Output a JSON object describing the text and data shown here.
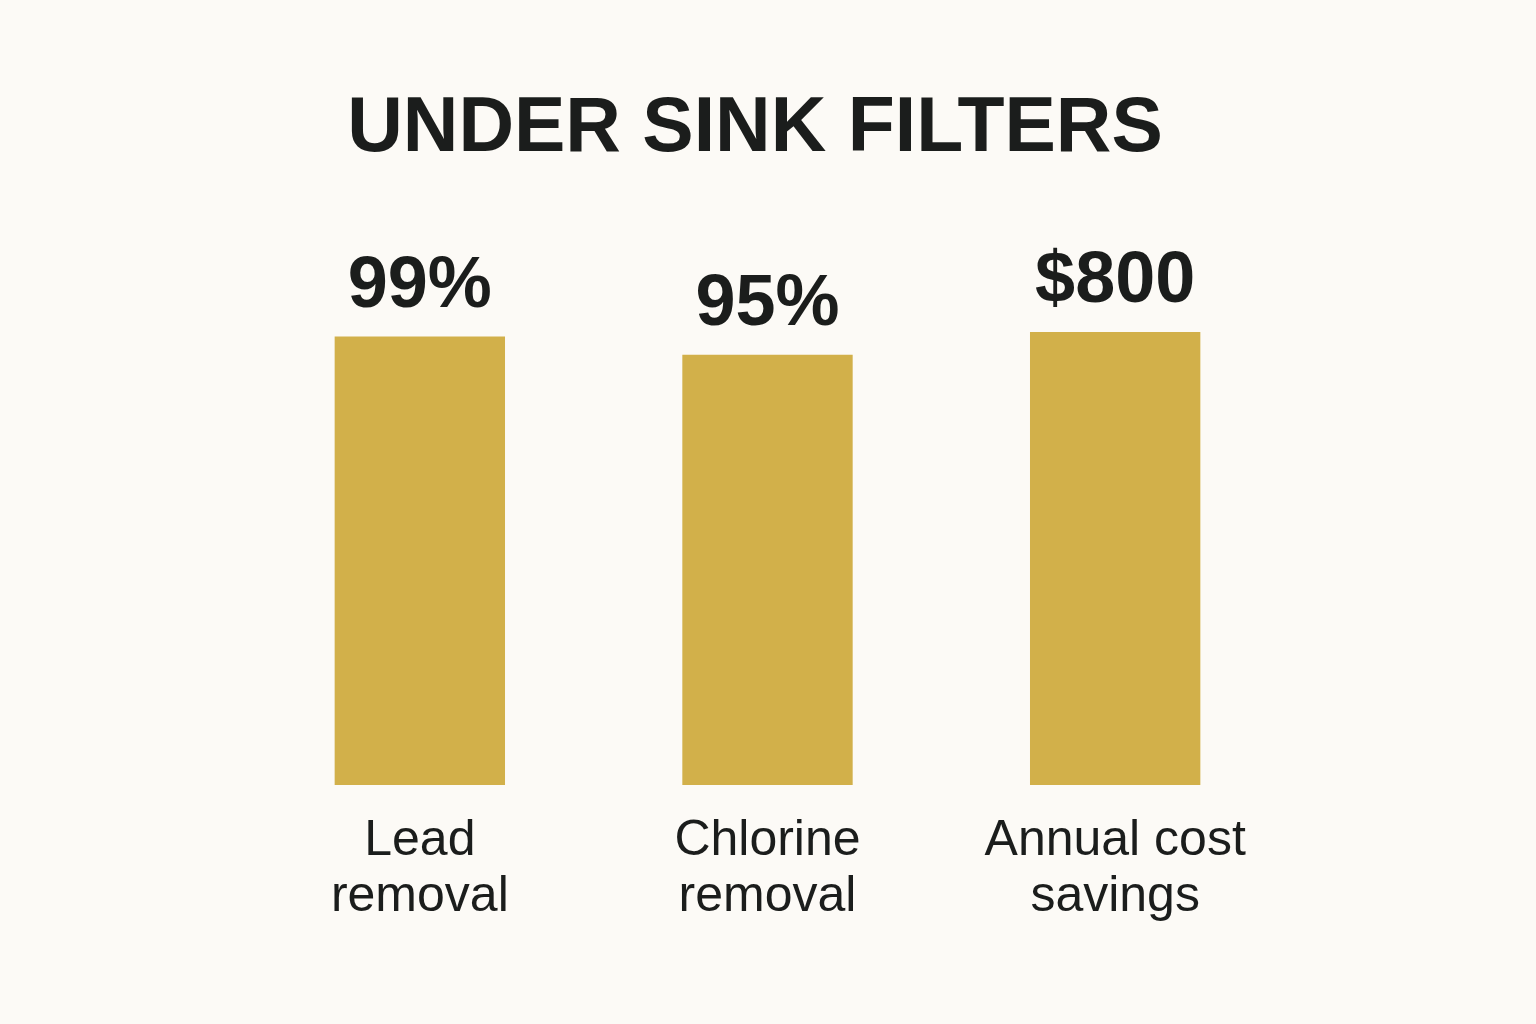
{
  "chart_data": {
    "type": "bar",
    "title": "UNDER SINK FILTERS",
    "categories": [
      "Lead removal",
      "Chlorine removal",
      "Annual cost savings"
    ],
    "series": [
      {
        "color": "#d2b04a",
        "values": [
          99,
          95,
          null
        ],
        "value_labels": [
          "99%",
          "95%",
          null
        ]
      },
      {
        "color": "#d2b04a",
        "values": [
          null,
          null,
          800
        ],
        "value_labels": [
          null,
          null,
          "$800"
        ],
        "axis": "y2"
      }
    ],
    "tick_labels": "x"
  }
}
